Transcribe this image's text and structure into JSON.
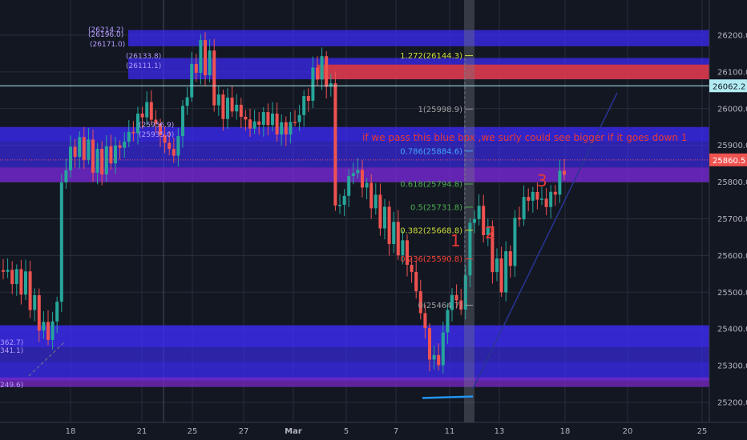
{
  "chart_data": {
    "type": "candlestick",
    "symbol_last_price": "25860.5",
    "marker_price": "26062.2",
    "y_ticks": [
      "26200.0",
      "26100.0",
      "26000.0",
      "25900.0",
      "25800.0",
      "25700.0",
      "25600.0",
      "25500.0",
      "25400.0",
      "25300.0",
      "25200.0"
    ],
    "x_ticks": [
      "18",
      "21",
      "25",
      "27",
      "Mar",
      "5",
      "7",
      "11",
      "13",
      "18",
      "20",
      "25"
    ],
    "ylim": [
      25160,
      26240
    ],
    "fib_levels": [
      {
        "label": "1.272(26144.3)",
        "price": 26144.3,
        "color": "#cddc39"
      },
      {
        "label": "1(25998.9)",
        "price": 25998.9,
        "color": "#9e9e9e"
      },
      {
        "label": "0.786(25884.6)",
        "price": 25884.6,
        "color": "#42a5f5"
      },
      {
        "label": "0.618(25794.8)",
        "price": 25794.8,
        "color": "#4caf50"
      },
      {
        "label": "0.5(25731.8)",
        "price": 25731.8,
        "color": "#4caf50"
      },
      {
        "label": "0.382(25668.8)",
        "price": 25668.8,
        "color": "#cddc39"
      },
      {
        "label": "0.236(25590.8)",
        "price": 25590.8,
        "color": "#f44336"
      },
      {
        "label": "0(25464.7)",
        "price": 25464.7,
        "color": "#9e9e9e"
      }
    ],
    "zone_labels": [
      "(26214.2)",
      "(26196.0)",
      "(26171.0)",
      "(26133.8)",
      "(26111.1)",
      "(25956.9)",
      "(25935.0)",
      "362.7)",
      "341.1)",
      "249.6)"
    ],
    "wave_labels": [
      "1",
      "2",
      "3"
    ],
    "annotation": "if we pass this blue box ,we surly could see bigger if it goes down 1",
    "colors": {
      "up": "#26a69a",
      "down": "#ef5350",
      "zone": "#3d2bff",
      "bg": "#131722"
    }
  }
}
